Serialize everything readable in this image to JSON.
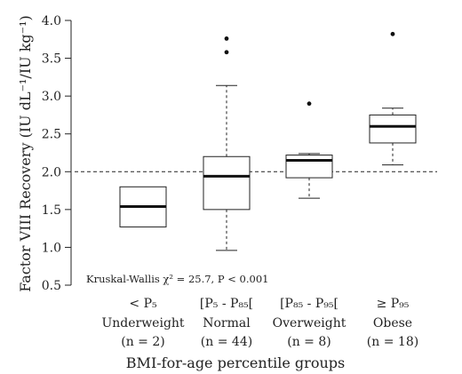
{
  "chart_data": {
    "type": "box",
    "xlabel": "BMI-for-age percentile groups",
    "ylabel": "Factor VIII Recovery (IU dL⁻¹/IU kg⁻¹)",
    "ylim": [
      0.5,
      4.0
    ],
    "yticks": [
      "0.5",
      "1.0",
      "1.5",
      "2.0",
      "2.5",
      "3.0",
      "3.5",
      "4.0"
    ],
    "reference_line": 2.0,
    "grid": false,
    "annotation": "Kruskal-Wallis χ² = 25.7, P < 0.001",
    "groups": [
      {
        "label_line1": "< P₅",
        "label_line2": "Underweight",
        "label_line3": "(n = 2)",
        "q1": 1.27,
        "median": 1.54,
        "q3": 1.8,
        "whisker_low": null,
        "whisker_high": null,
        "outliers": []
      },
      {
        "label_line1": "[P₅ - P₈₅[",
        "label_line2": "Normal",
        "label_line3": "(n = 44)",
        "q1": 1.5,
        "median": 1.94,
        "q3": 2.2,
        "whisker_low": 0.96,
        "whisker_high": 3.14,
        "outliers": [
          3.58,
          3.76
        ]
      },
      {
        "label_line1": "[P₈₅ - P₉₅[",
        "label_line2": "Overweight",
        "label_line3": "(n = 8)",
        "q1": 1.92,
        "median": 2.15,
        "q3": 2.22,
        "whisker_low": 1.65,
        "whisker_high": 2.24,
        "outliers": [
          2.9
        ]
      },
      {
        "label_line1": "≥ P₉₅",
        "label_line2": "Obese",
        "label_line3": "(n = 18)",
        "q1": 2.38,
        "median": 2.6,
        "q3": 2.75,
        "whisker_low": 2.09,
        "whisker_high": 2.84,
        "outliers": [
          3.82
        ]
      }
    ]
  }
}
